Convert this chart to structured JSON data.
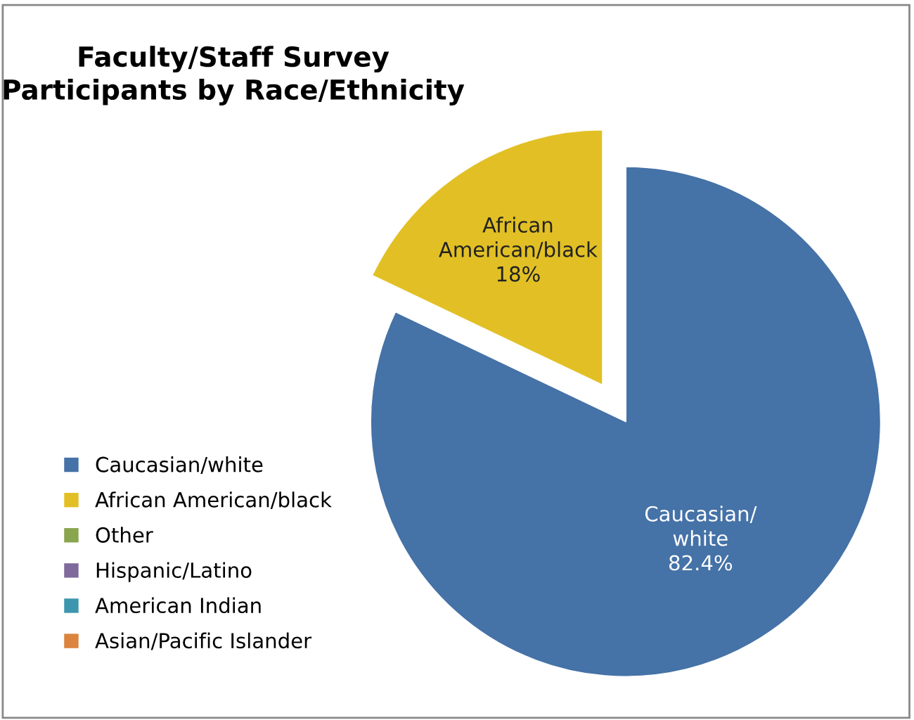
{
  "chart_data": {
    "type": "pie",
    "title": "Faculty/Staff Survey\nParticipants by Race/Ethnicity",
    "categories": [
      "Caucasian/white",
      "African American/black",
      "Other",
      "Hispanic/Latino",
      "American Indian",
      "Asian/Pacific Islander"
    ],
    "values": [
      82.4,
      18,
      0,
      0,
      0,
      0
    ],
    "colors": [
      "#4572a7",
      "#e2c025",
      "#89a54e",
      "#80699b",
      "#3d96ae",
      "#db843d"
    ],
    "value_labels": [
      "Caucasian/\nwhite\n82.4%",
      "African\nAmerican/black\n18%",
      null,
      null,
      null,
      null
    ],
    "legend": "left"
  }
}
